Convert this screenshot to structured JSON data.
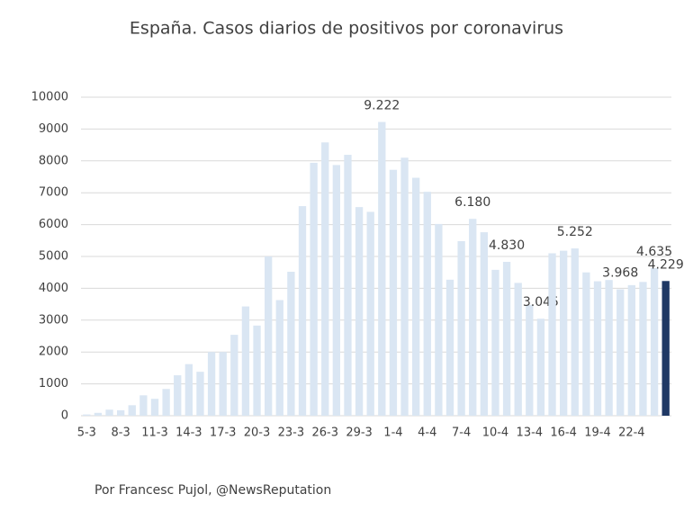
{
  "chart_data": {
    "type": "bar",
    "title": "España. Casos diarios de positivos por coronavirus",
    "footer": "Por Francesc Pujol, @NewsReputation",
    "categories": [
      "5-3",
      null,
      null,
      "8-3",
      null,
      null,
      "11-3",
      null,
      null,
      "14-3",
      null,
      null,
      "17-3",
      null,
      null,
      "20-3",
      null,
      null,
      "23-3",
      null,
      null,
      "26-3",
      null,
      null,
      "29-3",
      null,
      null,
      "1-4",
      null,
      null,
      "4-4",
      null,
      null,
      "7-4",
      null,
      null,
      "10-4",
      null,
      null,
      "13-4",
      null,
      null,
      "16-4",
      null,
      null,
      "19-4",
      null,
      null,
      "22-4",
      null,
      null,
      null
    ],
    "values": [
      40,
      90,
      190,
      170,
      330,
      640,
      530,
      840,
      1270,
      1620,
      1380,
      2000,
      2000,
      2540,
      3430,
      2830,
      5000,
      3630,
      4520,
      6580,
      7940,
      8580,
      7870,
      8190,
      6550,
      6400,
      9222,
      7720,
      8100,
      7470,
      7030,
      6020,
      4270,
      5480,
      6180,
      5760,
      4580,
      4830,
      4170,
      3480,
      3045,
      5100,
      5180,
      5252,
      4500,
      4220,
      4260,
      3968,
      4100,
      4200,
      4635,
      4229
    ],
    "value_labels": [
      null,
      null,
      null,
      null,
      null,
      null,
      null,
      null,
      null,
      null,
      null,
      null,
      null,
      null,
      null,
      null,
      null,
      null,
      null,
      null,
      null,
      null,
      null,
      null,
      null,
      null,
      "9.222",
      null,
      null,
      null,
      null,
      null,
      null,
      null,
      "6.180",
      null,
      null,
      "4.830",
      null,
      null,
      "3.045",
      null,
      null,
      "5.252",
      null,
      null,
      null,
      "3.968",
      null,
      null,
      "4.635",
      "4.229"
    ],
    "colors": [
      "#dae6f3",
      "#dae6f3",
      "#dae6f3",
      "#dae6f3",
      "#dae6f3",
      "#dae6f3",
      "#dae6f3",
      "#dae6f3",
      "#dae6f3",
      "#dae6f3",
      "#dae6f3",
      "#dae6f3",
      "#dae6f3",
      "#dae6f3",
      "#dae6f3",
      "#dae6f3",
      "#dae6f3",
      "#dae6f3",
      "#dae6f3",
      "#dae6f3",
      "#dae6f3",
      "#dae6f3",
      "#dae6f3",
      "#dae6f3",
      "#dae6f3",
      "#dae6f3",
      "#dae6f3",
      "#dae6f3",
      "#dae6f3",
      "#dae6f3",
      "#dae6f3",
      "#dae6f3",
      "#dae6f3",
      "#dae6f3",
      "#dae6f3",
      "#dae6f3",
      "#dae6f3",
      "#dae6f3",
      "#dae6f3",
      "#dae6f3",
      "#dae6f3",
      "#dae6f3",
      "#dae6f3",
      "#dae6f3",
      "#dae6f3",
      "#dae6f3",
      "#dae6f3",
      "#dae6f3",
      "#dae6f3",
      "#dae6f3",
      "#dae6f3",
      "#1f3864"
    ],
    "ylim": [
      0,
      10000
    ],
    "yticks": [
      0,
      1000,
      2000,
      3000,
      4000,
      5000,
      6000,
      7000,
      8000,
      9000,
      10000
    ],
    "grid": true
  }
}
